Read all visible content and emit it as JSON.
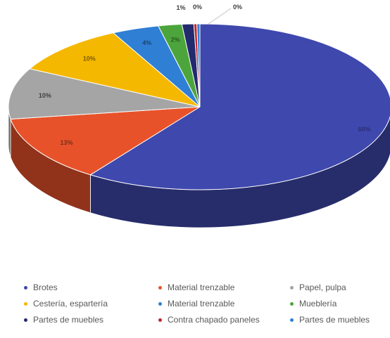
{
  "chart_data": {
    "type": "pie",
    "style": "3d-exploded-view",
    "slices": [
      {
        "name": "Brotes",
        "value": 60,
        "label": "60%",
        "color": "#3F48AD"
      },
      {
        "name": "Material trenzable",
        "value": 13,
        "label": "13%",
        "color": "#E8522A"
      },
      {
        "name": "Papel, pulpa",
        "value": 10,
        "label": "10%",
        "color": "#A5A5A5"
      },
      {
        "name": "Cestería, espartería",
        "value": 10,
        "label": "10%",
        "color": "#F5B800"
      },
      {
        "name": "Material trenzable",
        "value": 4,
        "label": "4%",
        "color": "#2F7FD4"
      },
      {
        "name": "Mueblería",
        "value": 2,
        "label": "2%",
        "color": "#4CA53C"
      },
      {
        "name": "Partes de muebles",
        "value": 1,
        "label": "1%",
        "color": "#232A6E"
      },
      {
        "name": "Contra chapado paneles",
        "value": 0,
        "label": "0%",
        "color": "#C0262B"
      },
      {
        "name": "Partes de muebles",
        "value": 0,
        "label": "0%",
        "color": "#2F7FD4"
      }
    ],
    "legend_position": "bottom",
    "title": ""
  }
}
